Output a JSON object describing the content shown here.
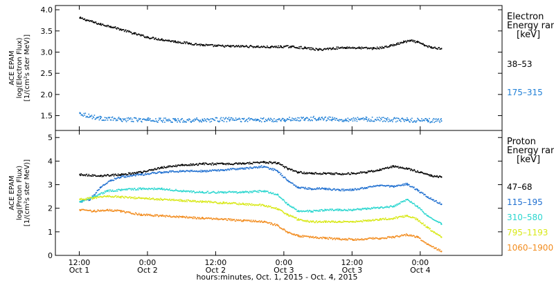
{
  "chart_data": [
    {
      "type": "scatter",
      "panel": "electron",
      "ylabel_lines": [
        "ACE EPAM",
        "log(Electron Flux)",
        "[1/(cm²s ster MeV)]"
      ],
      "ylim": [
        1.15,
        4.1
      ],
      "yticks": [
        1.5,
        2.0,
        2.5,
        3.0,
        3.5,
        4.0
      ],
      "ytick_labels": [
        "1.5",
        "2.0",
        "2.5",
        "3.0",
        "3.5",
        "4.0"
      ],
      "legend": {
        "title_lines": [
          "Electron",
          "Energy ran",
          "[keV]"
        ],
        "entries": [
          {
            "label": "38–53",
            "color": "#000000"
          },
          {
            "label": "175–315",
            "color": "#1f7fd6"
          }
        ]
      },
      "series": [
        {
          "label_ref": 0,
          "color": "#000000",
          "x": [
            0.0,
            0.1,
            0.2,
            0.3,
            0.45,
            0.6,
            0.8,
            1.0,
            1.2,
            1.4,
            1.6,
            1.8,
            2.0,
            2.2,
            2.4,
            2.6,
            2.8,
            2.95,
            3.1,
            3.3,
            3.5,
            3.7,
            3.9,
            4.1,
            4.3,
            4.45,
            4.55,
            4.65,
            4.75,
            4.85,
            4.95,
            5.05,
            5.15,
            5.3
          ],
          "y": [
            3.82,
            3.77,
            3.72,
            3.67,
            3.62,
            3.55,
            3.45,
            3.36,
            3.31,
            3.26,
            3.22,
            3.18,
            3.16,
            3.15,
            3.15,
            3.14,
            3.13,
            3.14,
            3.14,
            3.11,
            3.07,
            3.1,
            3.12,
            3.11,
            3.1,
            3.12,
            3.16,
            3.2,
            3.25,
            3.28,
            3.25,
            3.18,
            3.12,
            3.1
          ]
        },
        {
          "label_ref": 1,
          "color": "#1f7fd6",
          "x": [
            0.0,
            0.15,
            0.3,
            0.6,
            1.0,
            1.4,
            1.8,
            2.2,
            2.6,
            3.0,
            3.3,
            3.5,
            3.7,
            3.9,
            4.2,
            4.5,
            4.8,
            5.1,
            5.3
          ],
          "y": [
            1.57,
            1.5,
            1.45,
            1.42,
            1.41,
            1.4,
            1.41,
            1.42,
            1.41,
            1.42,
            1.44,
            1.45,
            1.43,
            1.42,
            1.43,
            1.42,
            1.41,
            1.4,
            1.39
          ]
        }
      ]
    },
    {
      "type": "scatter",
      "panel": "proton",
      "ylabel_lines": [
        "ACE EPAM",
        "log(Proton Flux)",
        "[1/(cm²s ster MeV)]"
      ],
      "ylim": [
        0.0,
        5.3
      ],
      "yticks": [
        0,
        1,
        2,
        3,
        4,
        5
      ],
      "ytick_labels": [
        "0",
        "1",
        "2",
        "3",
        "4",
        "5"
      ],
      "legend": {
        "title_lines": [
          "Proton",
          "Energy ran",
          "[keV]"
        ],
        "entries": [
          {
            "label": "47–68",
            "color": "#000000"
          },
          {
            "label": "115–195",
            "color": "#1f6fd0"
          },
          {
            "label": "310–580",
            "color": "#2ad6cf"
          },
          {
            "label": "795–1193",
            "color": "#d8e816"
          },
          {
            "label": "1060–1900",
            "color": "#f28c1e"
          }
        ]
      },
      "series": [
        {
          "label_ref": 0,
          "color": "#000000",
          "x": [
            0.0,
            0.3,
            0.6,
            0.9,
            1.2,
            1.5,
            1.8,
            2.1,
            2.4,
            2.7,
            2.9,
            3.05,
            3.2,
            3.4,
            3.6,
            3.8,
            4.0,
            4.2,
            4.4,
            4.6,
            4.8,
            5.0,
            5.15,
            5.3
          ],
          "y": [
            3.45,
            3.4,
            3.45,
            3.55,
            3.75,
            3.85,
            3.9,
            3.9,
            3.92,
            3.97,
            3.95,
            3.7,
            3.55,
            3.5,
            3.5,
            3.48,
            3.5,
            3.55,
            3.65,
            3.8,
            3.7,
            3.55,
            3.4,
            3.35
          ]
        },
        {
          "label_ref": 1,
          "color": "#1f6fd0",
          "x": [
            0.0,
            0.15,
            0.3,
            0.45,
            0.6,
            0.9,
            1.2,
            1.5,
            1.8,
            2.1,
            2.4,
            2.7,
            2.9,
            3.05,
            3.2,
            3.4,
            3.6,
            3.8,
            4.0,
            4.2,
            4.4,
            4.6,
            4.8,
            4.95,
            5.1,
            5.3
          ],
          "y": [
            2.3,
            2.4,
            2.9,
            3.2,
            3.35,
            3.45,
            3.55,
            3.6,
            3.6,
            3.65,
            3.7,
            3.8,
            3.6,
            3.2,
            2.9,
            2.85,
            2.85,
            2.8,
            2.8,
            2.9,
            3.0,
            2.95,
            3.05,
            2.8,
            2.5,
            2.2
          ]
        },
        {
          "label_ref": 2,
          "color": "#2ad6cf",
          "x": [
            0.0,
            0.2,
            0.4,
            0.6,
            0.9,
            1.2,
            1.5,
            1.8,
            2.1,
            2.4,
            2.7,
            2.9,
            3.05,
            3.2,
            3.4,
            3.6,
            3.8,
            4.0,
            4.2,
            4.4,
            4.6,
            4.8,
            4.95,
            5.1,
            5.3
          ],
          "y": [
            2.3,
            2.5,
            2.75,
            2.8,
            2.85,
            2.85,
            2.75,
            2.7,
            2.7,
            2.7,
            2.75,
            2.6,
            2.2,
            1.9,
            1.9,
            1.95,
            1.95,
            1.95,
            2.0,
            2.05,
            2.1,
            2.4,
            2.1,
            1.7,
            1.35
          ]
        },
        {
          "label_ref": 3,
          "color": "#d8e816",
          "x": [
            0.0,
            0.2,
            0.4,
            0.6,
            0.9,
            1.2,
            1.5,
            1.8,
            2.1,
            2.4,
            2.7,
            2.9,
            3.05,
            3.2,
            3.4,
            3.6,
            3.8,
            4.0,
            4.2,
            4.4,
            4.6,
            4.8,
            4.95,
            5.1,
            5.3
          ],
          "y": [
            2.4,
            2.45,
            2.55,
            2.5,
            2.45,
            2.4,
            2.35,
            2.3,
            2.25,
            2.2,
            2.15,
            2.0,
            1.75,
            1.55,
            1.45,
            1.45,
            1.45,
            1.45,
            1.5,
            1.55,
            1.6,
            1.7,
            1.55,
            1.2,
            0.8
          ]
        },
        {
          "label_ref": 4,
          "color": "#f28c1e",
          "x": [
            0.0,
            0.2,
            0.4,
            0.6,
            0.9,
            1.2,
            1.5,
            1.8,
            2.1,
            2.4,
            2.7,
            2.9,
            3.05,
            3.2,
            3.4,
            3.6,
            3.8,
            4.0,
            4.2,
            4.4,
            4.6,
            4.8,
            4.95,
            5.1,
            5.3
          ],
          "y": [
            1.95,
            1.9,
            1.95,
            1.9,
            1.75,
            1.7,
            1.65,
            1.6,
            1.55,
            1.5,
            1.45,
            1.3,
            1.0,
            0.85,
            0.8,
            0.75,
            0.72,
            0.7,
            0.72,
            0.75,
            0.8,
            0.9,
            0.8,
            0.5,
            0.2
          ]
        }
      ]
    }
  ],
  "x_axis": {
    "xlim": [
      -0.35,
      6.2
    ],
    "ticks": [
      {
        "x": 0.0,
        "time": "12:00",
        "date": "Oct 1"
      },
      {
        "x": 1.0,
        "time": "0:00",
        "date": "Oct 2"
      },
      {
        "x": 2.0,
        "time": "12:00",
        "date": "Oct 2"
      },
      {
        "x": 3.0,
        "time": "0:00",
        "date": "Oct 3"
      },
      {
        "x": 4.0,
        "time": "12:00",
        "date": "Oct 3"
      },
      {
        "x": 5.0,
        "time": "0:00",
        "date": "Oct 4"
      }
    ],
    "title": "hours:minutes, Oct.  1, 2015 - Oct.  4, 2015"
  }
}
